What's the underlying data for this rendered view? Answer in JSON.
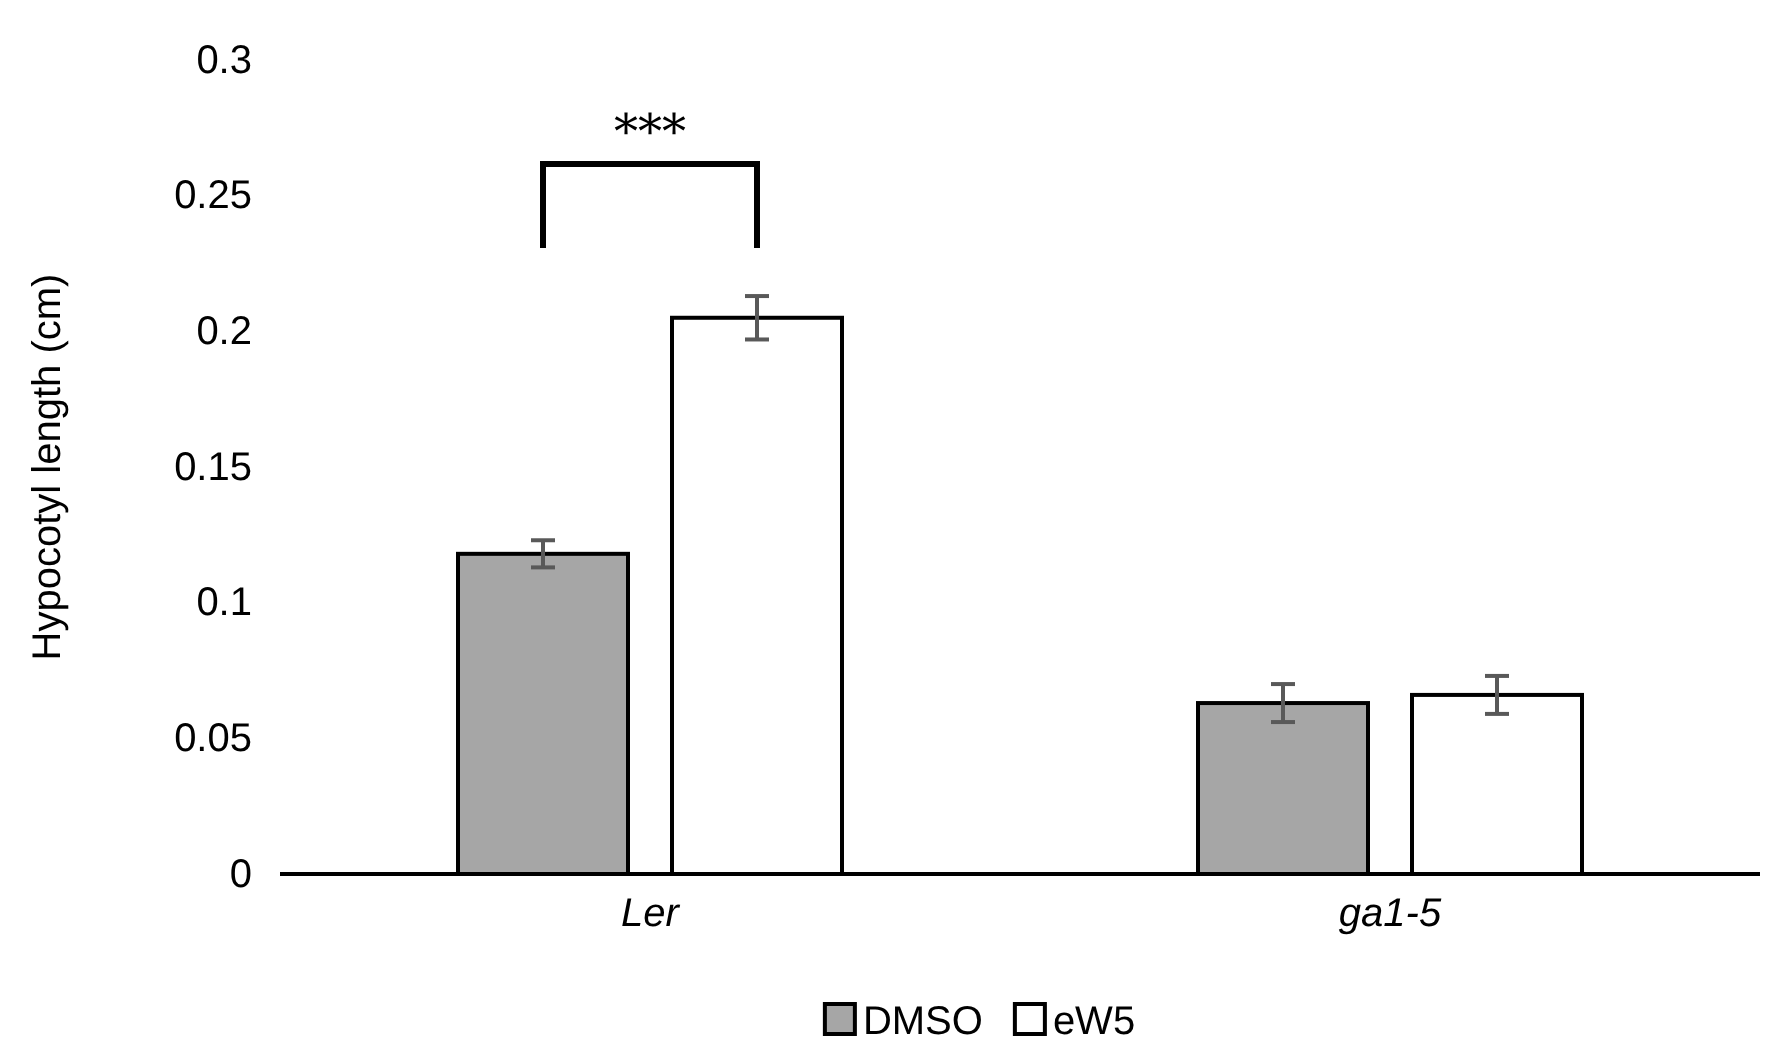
{
  "chart_data": {
    "type": "bar",
    "ylabel": "Hypocotyl length (cm)",
    "categories": [
      "Ler",
      "ga1-5"
    ],
    "series": [
      {
        "name": "DMSO",
        "color": "#a6a6a6",
        "values": [
          0.118,
          0.063
        ],
        "errors": [
          0.005,
          0.007
        ]
      },
      {
        "name": "eW5",
        "color": "#ffffff",
        "values": [
          0.205,
          0.066
        ],
        "errors": [
          0.008,
          0.007
        ]
      }
    ],
    "ylim": [
      0,
      0.3
    ],
    "yticks": [
      0,
      0.05,
      0.1,
      0.15,
      0.2,
      0.25,
      0.3
    ],
    "grid": false,
    "legend": "bottom",
    "annotations": [
      "***"
    ]
  }
}
